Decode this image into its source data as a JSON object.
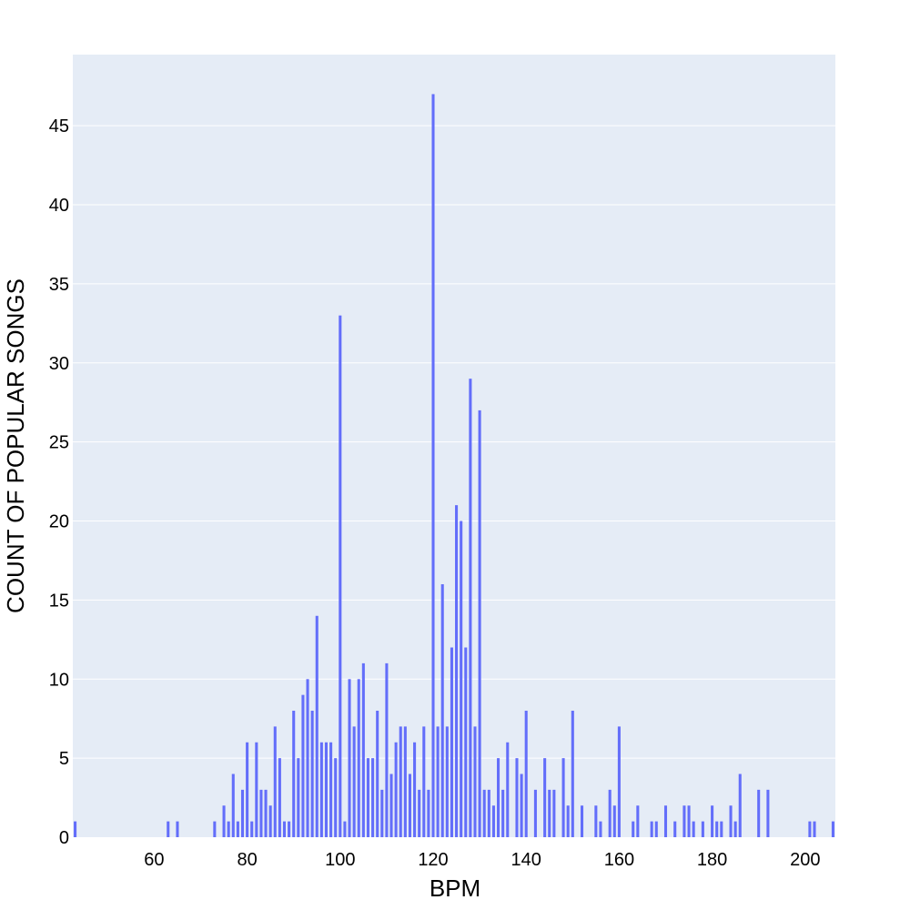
{
  "colors": {
    "bar": "#636efa",
    "plot_background": "#e5ecf6",
    "gridline": "#ffffff",
    "page_background": "#ffffff"
  },
  "chart_data": {
    "type": "bar",
    "xlabel": "BPM",
    "ylabel": "COUNT OF POPULAR SONGS",
    "xlim": [
      42.5,
      206.5
    ],
    "ylim": [
      0,
      49.5
    ],
    "x_ticks": [
      60,
      80,
      100,
      120,
      140,
      160,
      180,
      200
    ],
    "y_ticks": [
      0,
      5,
      10,
      15,
      20,
      25,
      30,
      35,
      40,
      45
    ],
    "grid": true,
    "bar_width": 0.6,
    "x": [
      43,
      63,
      65,
      73,
      75,
      76,
      77,
      78,
      79,
      80,
      81,
      82,
      83,
      84,
      85,
      86,
      87,
      88,
      89,
      90,
      91,
      92,
      93,
      94,
      95,
      96,
      97,
      98,
      99,
      100,
      101,
      102,
      103,
      104,
      105,
      106,
      107,
      108,
      109,
      110,
      111,
      112,
      113,
      114,
      115,
      116,
      117,
      118,
      119,
      120,
      121,
      122,
      123,
      124,
      125,
      126,
      127,
      128,
      129,
      130,
      131,
      132,
      133,
      134,
      135,
      136,
      138,
      139,
      140,
      142,
      144,
      145,
      146,
      148,
      149,
      150,
      152,
      155,
      156,
      158,
      159,
      160,
      163,
      164,
      167,
      168,
      170,
      172,
      174,
      175,
      176,
      178,
      180,
      181,
      182,
      184,
      185,
      186,
      190,
      192,
      201,
      202,
      206
    ],
    "values": [
      1,
      1,
      1,
      1,
      2,
      1,
      4,
      1,
      3,
      6,
      1,
      6,
      3,
      3,
      2,
      7,
      5,
      1,
      1,
      8,
      5,
      9,
      10,
      8,
      14,
      6,
      6,
      6,
      5,
      33,
      1,
      10,
      7,
      10,
      11,
      5,
      5,
      8,
      3,
      11,
      4,
      6,
      7,
      7,
      4,
      6,
      3,
      7,
      3,
      47,
      7,
      16,
      7,
      12,
      21,
      20,
      12,
      29,
      7,
      27,
      3,
      3,
      2,
      5,
      3,
      6,
      5,
      4,
      8,
      3,
      5,
      3,
      3,
      5,
      2,
      8,
      2,
      2,
      1,
      3,
      2,
      7,
      1,
      2,
      1,
      1,
      2,
      1,
      2,
      2,
      1,
      1,
      2,
      1,
      1,
      2,
      1,
      4,
      3,
      3,
      1,
      1,
      1
    ]
  }
}
